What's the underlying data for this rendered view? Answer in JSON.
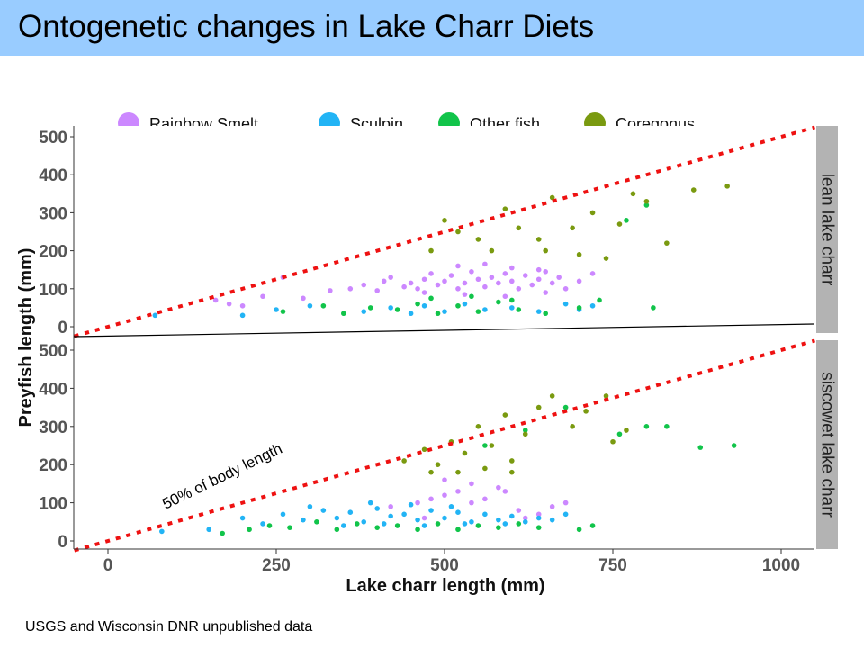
{
  "slide": {
    "title": "Ontogenetic changes in Lake Charr Diets",
    "source": "USGS and Wisconsin DNR unpublished data"
  },
  "chart_data": {
    "type": "scatter",
    "xlabel": "Lake charr length (mm)",
    "ylabel": "Preyfish length (mm)",
    "xlim": [
      -50,
      1050
    ],
    "ylim": [
      -10,
      525
    ],
    "xticks": [
      0,
      250,
      500,
      750,
      1000
    ],
    "yticks": [
      0,
      100,
      200,
      300,
      400,
      500
    ],
    "grid": false,
    "legend_position": "top",
    "legend": [
      {
        "name": "Rainbow Smelt",
        "color": "#cc88ff"
      },
      {
        "name": "Sculpin",
        "color": "#22b4f5"
      },
      {
        "name": "Other fish",
        "color": "#11c44a"
      },
      {
        "name": "Coregonus",
        "color": "#7a9a10"
      }
    ],
    "reference_line": {
      "label": "50% of body length",
      "slope": 0.5,
      "color": "#ee1111"
    },
    "panels": [
      {
        "name": "lean lake charr",
        "series": [
          {
            "name": "Rainbow Smelt",
            "points": [
              [
                160,
                70
              ],
              [
                180,
                60
              ],
              [
                200,
                55
              ],
              [
                230,
                80
              ],
              [
                260,
                130
              ],
              [
                290,
                75
              ],
              [
                330,
                95
              ],
              [
                360,
                100
              ],
              [
                380,
                110
              ],
              [
                400,
                95
              ],
              [
                410,
                120
              ],
              [
                420,
                130
              ],
              [
                440,
                105
              ],
              [
                450,
                115
              ],
              [
                460,
                100
              ],
              [
                470,
                125
              ],
              [
                480,
                140
              ],
              [
                490,
                110
              ],
              [
                500,
                120
              ],
              [
                510,
                135
              ],
              [
                520,
                100
              ],
              [
                530,
                115
              ],
              [
                540,
                145
              ],
              [
                550,
                125
              ],
              [
                560,
                105
              ],
              [
                570,
                130
              ],
              [
                580,
                115
              ],
              [
                590,
                140
              ],
              [
                600,
                120
              ],
              [
                610,
                100
              ],
              [
                620,
                135
              ],
              [
                630,
                110
              ],
              [
                640,
                125
              ],
              [
                650,
                145
              ],
              [
                660,
                115
              ],
              [
                670,
                130
              ],
              [
                680,
                100
              ],
              [
                520,
                160
              ],
              [
                560,
                165
              ],
              [
                600,
                155
              ],
              [
                640,
                150
              ],
              [
                470,
                90
              ],
              [
                530,
                85
              ],
              [
                590,
                80
              ],
              [
                650,
                90
              ],
              [
                700,
                120
              ],
              [
                720,
                140
              ]
            ]
          },
          {
            "name": "Sculpin",
            "points": [
              [
                70,
                30
              ],
              [
                200,
                30
              ],
              [
                300,
                55
              ],
              [
                380,
                40
              ],
              [
                420,
                50
              ],
              [
                450,
                35
              ],
              [
                470,
                55
              ],
              [
                500,
                40
              ],
              [
                530,
                60
              ],
              [
                560,
                45
              ],
              [
                600,
                50
              ],
              [
                640,
                40
              ],
              [
                680,
                60
              ],
              [
                700,
                45
              ],
              [
                720,
                55
              ],
              [
                250,
                45
              ]
            ]
          },
          {
            "name": "Other fish",
            "points": [
              [
                260,
                40
              ],
              [
                320,
                55
              ],
              [
                350,
                35
              ],
              [
                390,
                50
              ],
              [
                430,
                45
              ],
              [
                460,
                60
              ],
              [
                490,
                35
              ],
              [
                520,
                55
              ],
              [
                550,
                40
              ],
              [
                580,
                65
              ],
              [
                610,
                45
              ],
              [
                650,
                35
              ],
              [
                700,
                50
              ],
              [
                730,
                70
              ],
              [
                770,
                280
              ],
              [
                800,
                320
              ],
              [
                810,
                50
              ],
              [
                480,
                75
              ],
              [
                540,
                80
              ],
              [
                600,
                70
              ]
            ]
          },
          {
            "name": "Coregonus",
            "points": [
              [
                480,
                200
              ],
              [
                500,
                280
              ],
              [
                520,
                250
              ],
              [
                550,
                230
              ],
              [
                570,
                200
              ],
              [
                590,
                310
              ],
              [
                610,
                260
              ],
              [
                640,
                230
              ],
              [
                660,
                340
              ],
              [
                690,
                260
              ],
              [
                720,
                300
              ],
              [
                740,
                180
              ],
              [
                780,
                350
              ],
              [
                800,
                330
              ],
              [
                830,
                220
              ],
              [
                870,
                360
              ],
              [
                920,
                370
              ],
              [
                650,
                200
              ],
              [
                700,
                190
              ],
              [
                760,
                270
              ]
            ]
          }
        ]
      },
      {
        "name": "siscowet lake charr",
        "series": [
          {
            "name": "Rainbow Smelt",
            "points": [
              [
                420,
                90
              ],
              [
                460,
                100
              ],
              [
                480,
                110
              ],
              [
                500,
                120
              ],
              [
                520,
                130
              ],
              [
                540,
                100
              ],
              [
                560,
                110
              ],
              [
                590,
                130
              ],
              [
                610,
                80
              ],
              [
                640,
                70
              ],
              [
                660,
                90
              ],
              [
                680,
                100
              ],
              [
                500,
                160
              ],
              [
                540,
                150
              ],
              [
                580,
                140
              ],
              [
                470,
                60
              ],
              [
                620,
                60
              ]
            ]
          },
          {
            "name": "Sculpin",
            "points": [
              [
                80,
                25
              ],
              [
                150,
                30
              ],
              [
                200,
                60
              ],
              [
                230,
                45
              ],
              [
                260,
                70
              ],
              [
                290,
                55
              ],
              [
                320,
                80
              ],
              [
                340,
                60
              ],
              [
                360,
                75
              ],
              [
                380,
                50
              ],
              [
                400,
                85
              ],
              [
                420,
                65
              ],
              [
                440,
                70
              ],
              [
                460,
                55
              ],
              [
                480,
                80
              ],
              [
                500,
                60
              ],
              [
                520,
                75
              ],
              [
                540,
                50
              ],
              [
                560,
                70
              ],
              [
                580,
                55
              ],
              [
                600,
                65
              ],
              [
                620,
                50
              ],
              [
                640,
                60
              ],
              [
                660,
                55
              ],
              [
                680,
                70
              ],
              [
                350,
                40
              ],
              [
                410,
                45
              ],
              [
                470,
                40
              ],
              [
                530,
                45
              ],
              [
                590,
                45
              ],
              [
                300,
                90
              ],
              [
                390,
                100
              ],
              [
                450,
                95
              ],
              [
                510,
                90
              ]
            ]
          },
          {
            "name": "Other fish",
            "points": [
              [
                170,
                20
              ],
              [
                210,
                30
              ],
              [
                240,
                40
              ],
              [
                270,
                35
              ],
              [
                310,
                50
              ],
              [
                340,
                30
              ],
              [
                370,
                45
              ],
              [
                400,
                35
              ],
              [
                430,
                40
              ],
              [
                460,
                30
              ],
              [
                490,
                45
              ],
              [
                520,
                30
              ],
              [
                550,
                40
              ],
              [
                580,
                35
              ],
              [
                610,
                45
              ],
              [
                640,
                35
              ],
              [
                700,
                30
              ],
              [
                720,
                40
              ],
              [
                760,
                280
              ],
              [
                800,
                300
              ],
              [
                830,
                300
              ],
              [
                880,
                245
              ],
              [
                930,
                250
              ],
              [
                560,
                250
              ],
              [
                620,
                290
              ],
              [
                680,
                350
              ]
            ]
          },
          {
            "name": "Coregonus",
            "points": [
              [
                440,
                210
              ],
              [
                470,
                240
              ],
              [
                490,
                200
              ],
              [
                510,
                260
              ],
              [
                530,
                230
              ],
              [
                550,
                300
              ],
              [
                570,
                250
              ],
              [
                590,
                330
              ],
              [
                600,
                210
              ],
              [
                620,
                280
              ],
              [
                640,
                350
              ],
              [
                660,
                380
              ],
              [
                690,
                300
              ],
              [
                710,
                340
              ],
              [
                740,
                380
              ],
              [
                750,
                260
              ],
              [
                770,
                290
              ],
              [
                480,
                180
              ],
              [
                520,
                180
              ],
              [
                560,
                190
              ],
              [
                600,
                180
              ]
            ]
          }
        ]
      }
    ]
  }
}
